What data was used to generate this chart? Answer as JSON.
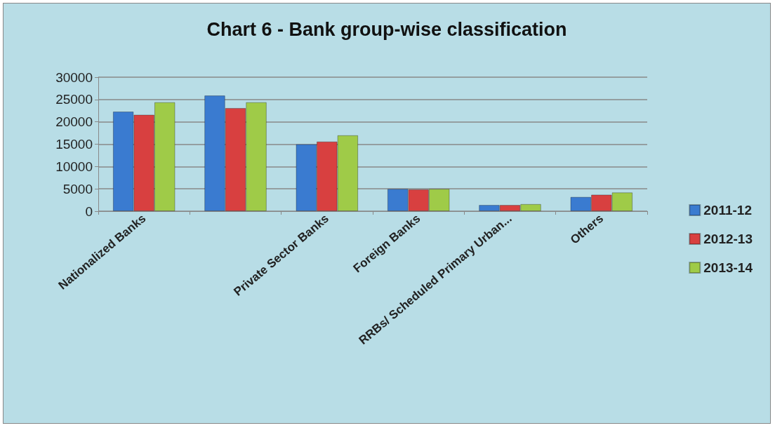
{
  "chart_data": {
    "type": "bar",
    "title": "Chart 6 - Bank group-wise classification",
    "categories": [
      "Nationalized Banks",
      null,
      "Private Sector Banks",
      "Foreign Banks",
      "RRBs/ Scheduled Primary Urban...",
      "Others"
    ],
    "series": [
      {
        "name": "2011-12",
        "color": "#3a7bd0",
        "values": [
          22300,
          25900,
          15000,
          5000,
          1400,
          3200
        ]
      },
      {
        "name": "2012-13",
        "color": "#d84040",
        "values": [
          21600,
          23100,
          15600,
          4900,
          1400,
          3700
        ]
      },
      {
        "name": "2013-14",
        "color": "#9fcb48",
        "values": [
          24400,
          24400,
          17000,
          5000,
          1600,
          4200
        ]
      }
    ],
    "ylim": [
      0,
      30000
    ],
    "yticks": [
      0,
      5000,
      10000,
      15000,
      20000,
      25000,
      30000
    ],
    "grid": "y",
    "legend": "right"
  }
}
